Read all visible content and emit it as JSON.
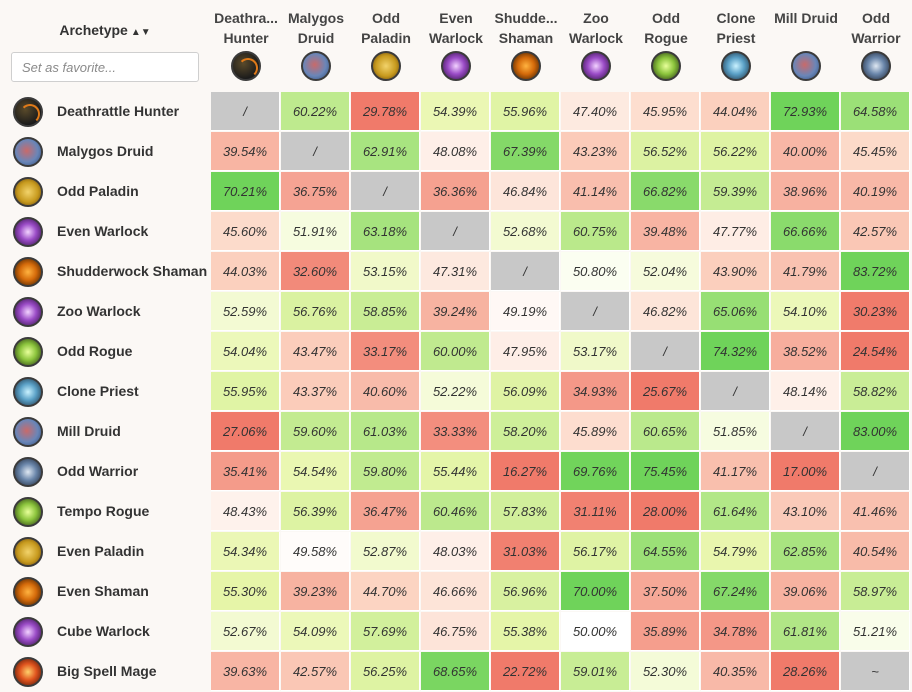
{
  "header": {
    "archetype_label": "Archetype",
    "sort_icon": "▲▼",
    "favorite_placeholder": "Set as favorite..."
  },
  "columns": [
    {
      "line1": "Deathra...",
      "line2": "Hunter",
      "icon": "deathrattle-hunter-icon"
    },
    {
      "line1": "Malygos",
      "line2": "Druid",
      "icon": "malygos-druid-icon"
    },
    {
      "line1": "Odd",
      "line2": "Paladin",
      "icon": "odd-paladin-icon"
    },
    {
      "line1": "Even",
      "line2": "Warlock",
      "icon": "even-warlock-icon"
    },
    {
      "line1": "Shudde...",
      "line2": "Shaman",
      "icon": "shudderwock-shaman-icon"
    },
    {
      "line1": "Zoo",
      "line2": "Warlock",
      "icon": "zoo-warlock-icon"
    },
    {
      "line1": "Odd",
      "line2": "Rogue",
      "icon": "odd-rogue-icon"
    },
    {
      "line1": "Clone",
      "line2": "Priest",
      "icon": "clone-priest-icon"
    },
    {
      "line1": "Mill Druid",
      "line2": "",
      "icon": "mill-druid-icon"
    },
    {
      "line1": "Odd",
      "line2": "Warrior",
      "icon": "odd-warrior-icon"
    }
  ],
  "rows": [
    {
      "name": "Deathrattle Hunter",
      "icon": "deathrattle-hunter-icon",
      "cells": [
        "/",
        "60.22%",
        "29.78%",
        "54.39%",
        "55.96%",
        "47.40%",
        "45.95%",
        "44.04%",
        "72.93%",
        "64.58%"
      ]
    },
    {
      "name": "Malygos Druid",
      "icon": "malygos-druid-icon",
      "cells": [
        "39.54%",
        "/",
        "62.91%",
        "48.08%",
        "67.39%",
        "43.23%",
        "56.52%",
        "56.22%",
        "40.00%",
        "45.45%"
      ]
    },
    {
      "name": "Odd Paladin",
      "icon": "odd-paladin-icon",
      "cells": [
        "70.21%",
        "36.75%",
        "/",
        "36.36%",
        "46.84%",
        "41.14%",
        "66.82%",
        "59.39%",
        "38.96%",
        "40.19%"
      ]
    },
    {
      "name": "Even Warlock",
      "icon": "even-warlock-icon",
      "cells": [
        "45.60%",
        "51.91%",
        "63.18%",
        "/",
        "52.68%",
        "60.75%",
        "39.48%",
        "47.77%",
        "66.66%",
        "42.57%"
      ]
    },
    {
      "name": "Shudderwock Shaman",
      "icon": "shudderwock-shaman-icon",
      "cells": [
        "44.03%",
        "32.60%",
        "53.15%",
        "47.31%",
        "/",
        "50.80%",
        "52.04%",
        "43.90%",
        "41.79%",
        "83.72%"
      ]
    },
    {
      "name": "Zoo Warlock",
      "icon": "zoo-warlock-icon",
      "cells": [
        "52.59%",
        "56.76%",
        "58.85%",
        "39.24%",
        "49.19%",
        "/",
        "46.82%",
        "65.06%",
        "54.10%",
        "30.23%"
      ]
    },
    {
      "name": "Odd Rogue",
      "icon": "odd-rogue-icon",
      "cells": [
        "54.04%",
        "43.47%",
        "33.17%",
        "60.00%",
        "47.95%",
        "53.17%",
        "/",
        "74.32%",
        "38.52%",
        "24.54%"
      ]
    },
    {
      "name": "Clone Priest",
      "icon": "clone-priest-icon",
      "cells": [
        "55.95%",
        "43.37%",
        "40.60%",
        "52.22%",
        "56.09%",
        "34.93%",
        "25.67%",
        "/",
        "48.14%",
        "58.82%"
      ]
    },
    {
      "name": "Mill Druid",
      "icon": "mill-druid-icon",
      "cells": [
        "27.06%",
        "59.60%",
        "61.03%",
        "33.33%",
        "58.20%",
        "45.89%",
        "60.65%",
        "51.85%",
        "/",
        "83.00%"
      ]
    },
    {
      "name": "Odd Warrior",
      "icon": "odd-warrior-icon",
      "cells": [
        "35.41%",
        "54.54%",
        "59.80%",
        "55.44%",
        "16.27%",
        "69.76%",
        "75.45%",
        "41.17%",
        "17.00%",
        "/"
      ]
    },
    {
      "name": "Tempo Rogue",
      "icon": "tempo-rogue-icon",
      "cells": [
        "48.43%",
        "56.39%",
        "36.47%",
        "60.46%",
        "57.83%",
        "31.11%",
        "28.00%",
        "61.64%",
        "43.10%",
        "41.46%"
      ]
    },
    {
      "name": "Even Paladin",
      "icon": "even-paladin-icon",
      "cells": [
        "54.34%",
        "49.58%",
        "52.87%",
        "48.03%",
        "31.03%",
        "56.17%",
        "64.55%",
        "54.79%",
        "62.85%",
        "40.54%"
      ]
    },
    {
      "name": "Even Shaman",
      "icon": "even-shaman-icon",
      "cells": [
        "55.30%",
        "39.23%",
        "44.70%",
        "46.66%",
        "56.96%",
        "70.00%",
        "37.50%",
        "67.24%",
        "39.06%",
        "58.97%"
      ]
    },
    {
      "name": "Cube Warlock",
      "icon": "cube-warlock-icon",
      "cells": [
        "52.67%",
        "54.09%",
        "57.69%",
        "46.75%",
        "55.38%",
        "50.00%",
        "35.89%",
        "34.78%",
        "61.81%",
        "51.21%"
      ]
    },
    {
      "name": "Big Spell Mage",
      "icon": "big-spell-mage-icon",
      "cells": [
        "39.63%",
        "42.57%",
        "56.25%",
        "68.65%",
        "22.72%",
        "59.01%",
        "52.30%",
        "40.35%",
        "28.26%",
        "~"
      ]
    }
  ],
  "colors": {
    "mirror": "#c8c8c8",
    "neutral": "#ffffff",
    "win_strong": "#6fd35a",
    "loss_strong": "#f07a6a"
  }
}
